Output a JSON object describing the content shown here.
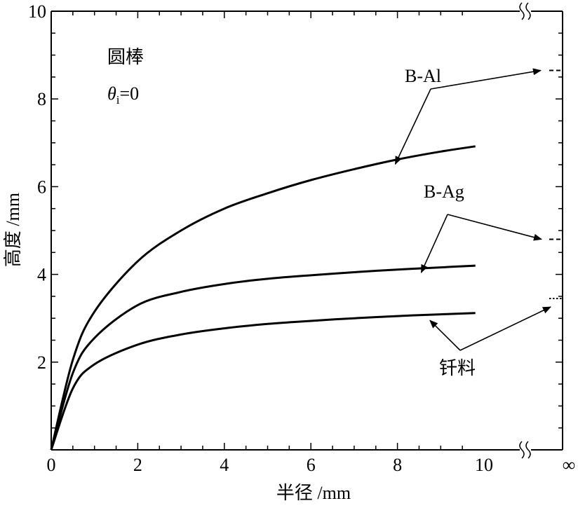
{
  "chart_data": {
    "type": "line",
    "xlabel": "半径 /mm",
    "ylabel": "高度 /mm",
    "xlim": [
      0,
      10
    ],
    "ylim": [
      0,
      10
    ],
    "x_ticks": [
      "0",
      "2",
      "4",
      "6",
      "8",
      "10"
    ],
    "y_ticks": [
      "2",
      "4",
      "6",
      "8",
      "10"
    ],
    "x_infinity_label": "∞",
    "grid": false,
    "annotations": {
      "shape": "圆棒",
      "angle": "θi=0",
      "angle_symbol": "θ",
      "angle_subscript": "i",
      "angle_value": "=0"
    },
    "series": [
      {
        "name": "B-Al",
        "x": [
          0,
          0.5,
          1,
          2,
          3,
          4,
          5,
          6,
          7,
          8,
          9,
          9.8
        ],
        "values": [
          0,
          2.05,
          3.15,
          4.3,
          5.0,
          5.5,
          5.85,
          6.15,
          6.4,
          6.62,
          6.8,
          6.92
        ],
        "asymptote": 8.65
      },
      {
        "name": "B-Ag",
        "x": [
          0,
          0.5,
          1,
          2,
          3,
          4,
          5,
          6,
          7,
          8,
          9,
          9.8
        ],
        "values": [
          0,
          1.75,
          2.55,
          3.3,
          3.6,
          3.78,
          3.9,
          3.98,
          4.05,
          4.11,
          4.16,
          4.2
        ],
        "asymptote": 4.8
      },
      {
        "name": "钎料",
        "x": [
          0,
          0.5,
          1,
          2,
          3,
          4,
          5,
          6,
          7,
          8,
          9,
          9.8
        ],
        "values": [
          0,
          1.4,
          1.95,
          2.4,
          2.63,
          2.77,
          2.87,
          2.94,
          3.0,
          3.05,
          3.09,
          3.12
        ],
        "asymptote": 3.45
      }
    ]
  }
}
